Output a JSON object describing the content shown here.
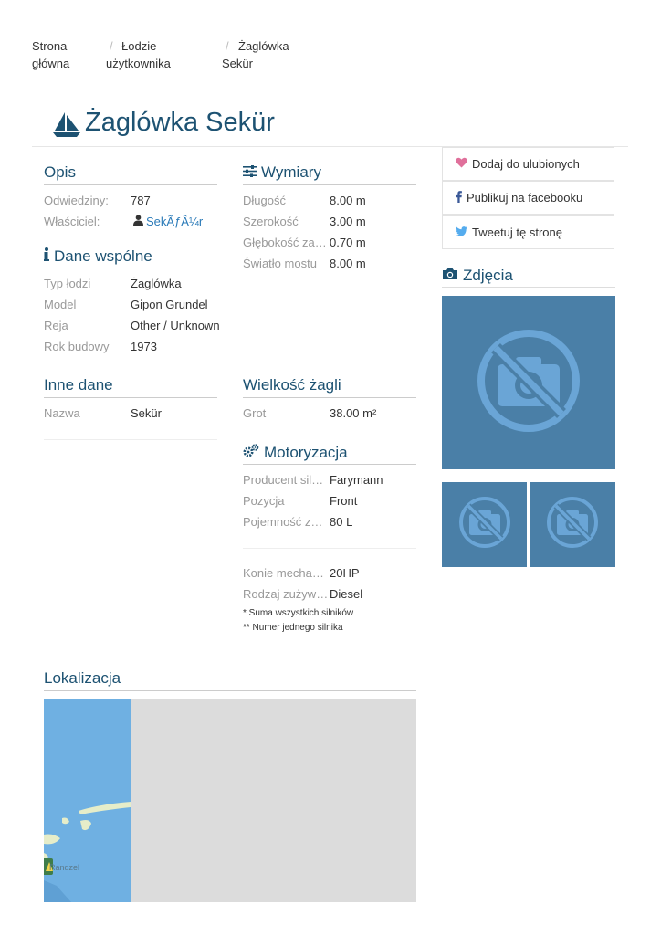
{
  "breadcrumb": [
    {
      "label_line1": "Strona",
      "label_line2": "główna"
    },
    {
      "label_line1": "Łodzie",
      "label_line2": "użytkownika"
    },
    {
      "label_line1": "Żaglówka",
      "label_line2": "Sekür"
    }
  ],
  "breadcrumb_sep": "/",
  "page": {
    "title": "Żaglówka Sekür",
    "title_icon": "sailboat-icon"
  },
  "opis": {
    "heading": "Opis",
    "rows": [
      {
        "label": "Odwiedziny:",
        "value": "787"
      },
      {
        "label": "Właściciel:",
        "value": "SekÃƒÂ¼r",
        "icon": "user-icon"
      }
    ]
  },
  "dane_wspolne": {
    "heading": "Dane wspólne",
    "icon": "info-icon",
    "rows": [
      {
        "label": "Typ łodzi",
        "value": "Żaglówka"
      },
      {
        "label": "Model",
        "value": "Gipon Grundel"
      },
      {
        "label": "Reja",
        "value": "Other / Unknown"
      },
      {
        "label": "Rok budowy",
        "value": "1973"
      }
    ]
  },
  "inne_dane": {
    "heading": "Inne dane",
    "rows": [
      {
        "label": "Nazwa",
        "value": "Sekür"
      }
    ]
  },
  "wymiary": {
    "heading": "Wymiary",
    "icon": "sliders-icon",
    "rows": [
      {
        "label": "Długość",
        "value": "8.00 m"
      },
      {
        "label": "Szerokość",
        "value": "3.00 m"
      },
      {
        "label": "Głębokość zanurzenia",
        "value": "0.70 m"
      },
      {
        "label": "Światło mostu",
        "value": "8.00 m"
      }
    ]
  },
  "wielkosc_zagli": {
    "heading": "Wielkość żagli",
    "rows": [
      {
        "label": "Grot",
        "value": "38.00 m²"
      }
    ]
  },
  "motoryzacja": {
    "heading": "Motoryzacja",
    "icon": "cogs-icon",
    "rows": [
      {
        "label": "Producent silnika",
        "value": "Farymann"
      },
      {
        "label": "Pozycja",
        "value": "Front"
      },
      {
        "label": "Pojemność zbiornika",
        "value": "80 L"
      }
    ],
    "rows2": [
      {
        "label": "Konie mechaniczne",
        "value": "20HP"
      },
      {
        "label": "Rodzaj zużywanego paliwa",
        "value": "Diesel"
      }
    ],
    "notes": [
      "* Suma wszystkich silników",
      "** Numer jednego silnika"
    ]
  },
  "sidebar": {
    "buttons": [
      {
        "label": "Dodaj do ulubionych",
        "icon": "heart-icon",
        "color": "#e0709b"
      },
      {
        "label": "Publikuj na facebooku",
        "icon": "facebook-icon",
        "color": "#3b5998"
      },
      {
        "label": "Tweetuj tę stronę",
        "icon": "twitter-icon",
        "color": "#55acee"
      }
    ],
    "photos_heading": "Zdjęcia",
    "photos_icon": "camera-icon"
  },
  "lokalizacja": {
    "heading": "Lokalizacja",
    "map_label": "Randzel"
  },
  "colors": {
    "accent": "#1d5272",
    "link": "#2a7ab8",
    "photo_bg": "#4a7fa7",
    "photo_icon": "#6aa5d6",
    "map_water": "#6fb0e2",
    "map_gray": "#dcdcdc"
  }
}
